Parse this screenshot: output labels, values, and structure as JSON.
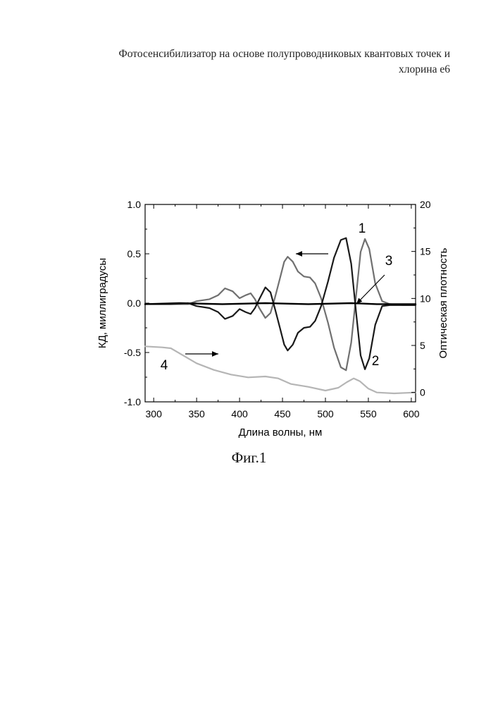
{
  "header": {
    "title_line1": "Фотосенсибилизатор на основе полупроводниковых квантовых точек и",
    "title_line2": "хлорина е6"
  },
  "figure": {
    "caption": "Фиг.1"
  },
  "chart_data": {
    "type": "line",
    "xlabel": "Длина волны, нм",
    "ylabel_left": "КД, миллиградусы",
    "ylabel_right": "Оптическая плотность",
    "xlim": [
      290,
      605
    ],
    "ylim_left": [
      -1.0,
      1.0
    ],
    "ylim_right": [
      -1.0,
      20
    ],
    "x_ticks": [
      "300",
      "350",
      "400",
      "450",
      "500",
      "550",
      "600"
    ],
    "y_left_ticks": [
      "1.0",
      "0.5",
      "0.0",
      "-0.5",
      "-1.0"
    ],
    "y_right_ticks": [
      "20",
      "15",
      "10",
      "5",
      "0"
    ],
    "grid": false,
    "annotations": [
      "1",
      "2",
      "3",
      "4"
    ],
    "series": [
      {
        "label": "1",
        "axis": "left",
        "color": "#707070",
        "x": [
          290,
          320,
          340,
          350,
          365,
          375,
          383,
          392,
          400,
          407,
          413,
          418,
          423,
          430,
          436,
          441,
          447,
          452,
          456,
          462,
          468,
          475,
          482,
          488,
          495,
          503,
          510,
          518,
          524,
          530,
          536,
          541,
          546,
          551,
          558,
          566,
          575,
          590,
          605
        ],
        "y": [
          -0.01,
          -0.01,
          -0.01,
          0.02,
          0.04,
          0.08,
          0.15,
          0.12,
          0.05,
          0.08,
          0.1,
          0.04,
          -0.05,
          -0.15,
          -0.1,
          0.05,
          0.25,
          0.42,
          0.47,
          0.42,
          0.32,
          0.27,
          0.26,
          0.2,
          0.05,
          -0.2,
          -0.45,
          -0.65,
          -0.68,
          -0.4,
          0.1,
          0.52,
          0.65,
          0.55,
          0.2,
          0.02,
          -0.01,
          -0.02,
          -0.02
        ]
      },
      {
        "label": "2",
        "axis": "left",
        "color": "#1a1a1a",
        "x": [
          290,
          320,
          340,
          350,
          365,
          375,
          383,
          392,
          400,
          407,
          413,
          418,
          423,
          430,
          436,
          441,
          447,
          452,
          456,
          462,
          468,
          475,
          482,
          488,
          495,
          503,
          510,
          518,
          524,
          530,
          536,
          541,
          546,
          551,
          558,
          566,
          575,
          590,
          605
        ],
        "y": [
          -0.01,
          -0.01,
          0.0,
          -0.03,
          -0.05,
          -0.09,
          -0.16,
          -0.13,
          -0.06,
          -0.09,
          -0.11,
          -0.05,
          0.04,
          0.16,
          0.11,
          -0.05,
          -0.25,
          -0.42,
          -0.48,
          -0.42,
          -0.3,
          -0.25,
          -0.24,
          -0.18,
          -0.03,
          0.22,
          0.46,
          0.64,
          0.66,
          0.4,
          -0.12,
          -0.53,
          -0.67,
          -0.56,
          -0.22,
          -0.03,
          -0.02,
          -0.02,
          -0.02
        ]
      },
      {
        "label": "3",
        "axis": "left",
        "color": "#000000",
        "x": [
          290,
          330,
          380,
          430,
          480,
          530,
          560,
          605
        ],
        "y": [
          -0.01,
          0.0,
          -0.01,
          0.0,
          -0.01,
          0.0,
          -0.01,
          -0.01
        ]
      },
      {
        "label": "4",
        "axis": "right",
        "color": "#b5b5b5",
        "x": [
          290,
          310,
          320,
          335,
          350,
          370,
          390,
          410,
          430,
          445,
          460,
          480,
          500,
          515,
          525,
          533,
          540,
          550,
          560,
          580,
          605
        ],
        "y": [
          4.9,
          4.8,
          4.7,
          3.9,
          3.1,
          2.4,
          1.9,
          1.6,
          1.7,
          1.5,
          0.9,
          0.6,
          0.2,
          0.5,
          1.1,
          1.5,
          1.2,
          0.4,
          0.0,
          -0.1,
          0.0
        ]
      }
    ]
  }
}
